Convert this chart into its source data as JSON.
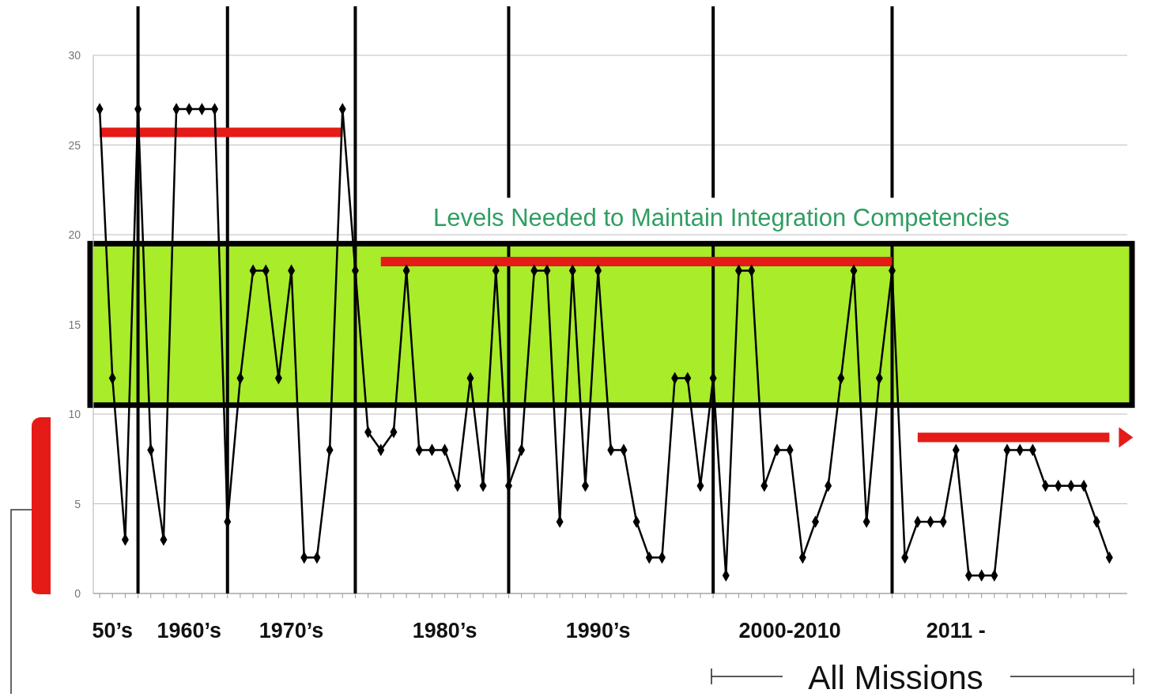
{
  "chart_data": {
    "type": "line",
    "categories": [
      null,
      "50’s",
      null,
      null,
      null,
      null,
      null,
      "1960’s",
      null,
      null,
      null,
      null,
      null,
      null,
      null,
      "1970’s",
      null,
      null,
      null,
      null,
      null,
      null,
      null,
      null,
      null,
      null,
      null,
      "1980’s",
      null,
      null,
      null,
      null,
      null,
      null,
      null,
      null,
      null,
      null,
      null,
      "1990’s",
      null,
      null,
      null,
      null,
      null,
      null,
      null,
      null,
      null,
      null,
      null,
      null,
      null,
      null,
      "2000-2010",
      null,
      null,
      null,
      null,
      null,
      null,
      null,
      null,
      null,
      null,
      null,
      null,
      "2011 -",
      null,
      null,
      null,
      null,
      null,
      null,
      null,
      null,
      null,
      null,
      null,
      null
    ],
    "series": [
      {
        "color": "#000000",
        "values": [
          27,
          12,
          3,
          27,
          8,
          3,
          27,
          27,
          27,
          27,
          4,
          12,
          18,
          18,
          12,
          18,
          2,
          2,
          8,
          27,
          18,
          9,
          8,
          9,
          18,
          8,
          8,
          8,
          6,
          12,
          6,
          18,
          6,
          8,
          18,
          18,
          4,
          18,
          6,
          18,
          8,
          8,
          4,
          2,
          2,
          12,
          12,
          6,
          12,
          1,
          18,
          18,
          6,
          8,
          8,
          2,
          4,
          6,
          12,
          18,
          4,
          12,
          18,
          2,
          4,
          4,
          4,
          8,
          1,
          1,
          1,
          8,
          8,
          8,
          6,
          6,
          6,
          6,
          4,
          2
        ]
      },
      {
        "type": "line",
        "color": "#e41b17",
        "marker": "none",
        "values": [
          25.7,
          25.7,
          25.7,
          25.7,
          25.7,
          25.7,
          25.7,
          25.7,
          25.7,
          25.7,
          25.7,
          25.7,
          25.7,
          25.7,
          25.7,
          25.7,
          25.7,
          25.7,
          25.7,
          25.7,
          null,
          null,
          null,
          null,
          null,
          null,
          null,
          null,
          null,
          null,
          null,
          null,
          null,
          null,
          null,
          null,
          null,
          null,
          null,
          null,
          null,
          null,
          null,
          null,
          null,
          null,
          null,
          null,
          null,
          null,
          null,
          null,
          null,
          null,
          null,
          null,
          null,
          null,
          null,
          null,
          null,
          null,
          null,
          null,
          null,
          null,
          null,
          null,
          null,
          null,
          null,
          null,
          null,
          null,
          null,
          null,
          null,
          null,
          null,
          null
        ]
      },
      {
        "type": "line",
        "color": "#e41b17",
        "marker": "none",
        "values": [
          null,
          null,
          null,
          null,
          null,
          null,
          null,
          null,
          null,
          null,
          null,
          null,
          null,
          null,
          null,
          null,
          null,
          null,
          null,
          null,
          null,
          null,
          18.5,
          18.5,
          18.5,
          18.5,
          18.5,
          18.5,
          18.5,
          18.5,
          18.5,
          18.5,
          18.5,
          18.5,
          18.5,
          18.5,
          18.5,
          18.5,
          18.5,
          18.5,
          18.5,
          18.5,
          18.5,
          18.5,
          18.5,
          18.5,
          18.5,
          18.5,
          18.5,
          18.5,
          18.5,
          18.5,
          18.5,
          18.5,
          18.5,
          18.5,
          18.5,
          18.5,
          18.5,
          18.5,
          18.5,
          18.5,
          18.5,
          null,
          null,
          null,
          null,
          null,
          null,
          null,
          null,
          null,
          null,
          null,
          null,
          null,
          null,
          null,
          null,
          null
        ]
      },
      {
        "type": "line",
        "color": "#e41b17",
        "marker": "none",
        "values": [
          null,
          null,
          null,
          null,
          null,
          null,
          null,
          null,
          null,
          null,
          null,
          null,
          null,
          null,
          null,
          null,
          null,
          null,
          null,
          null,
          null,
          null,
          null,
          null,
          null,
          null,
          null,
          null,
          null,
          null,
          null,
          null,
          null,
          null,
          null,
          null,
          null,
          null,
          null,
          null,
          null,
          null,
          null,
          null,
          null,
          null,
          null,
          null,
          null,
          null,
          null,
          null,
          null,
          null,
          null,
          null,
          null,
          null,
          null,
          null,
          null,
          null,
          null,
          null,
          8.7,
          8.7,
          8.7,
          8.7,
          8.7,
          8.7,
          8.7,
          8.7,
          8.7,
          8.7,
          8.7,
          8.7,
          8.7,
          8.7,
          8.7,
          8.7
        ]
      }
    ],
    "ylim": [
      0,
      30
    ],
    "yticks": [
      0,
      5,
      10,
      15,
      20,
      25,
      30
    ],
    "grid": "y",
    "marker": "diamond",
    "line_style": "solid",
    "bands": [
      {
        "axis": "y",
        "from": 10.5,
        "to": 19.5,
        "color": "#a8ec2a",
        "label": "Levels Needed to Maintain Integration Competencies"
      }
    ],
    "annotations": [
      "All Missions"
    ]
  }
}
